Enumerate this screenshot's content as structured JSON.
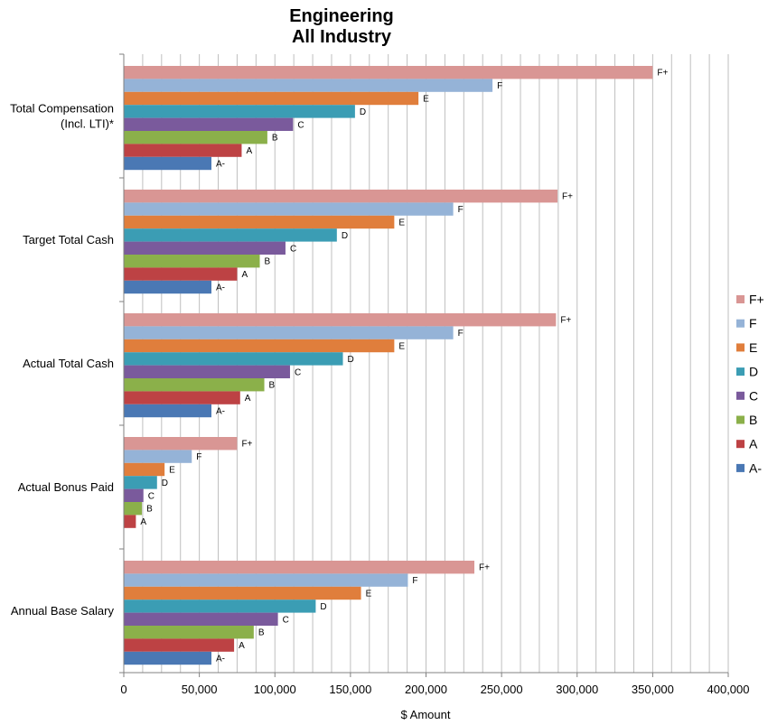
{
  "chart_data": {
    "type": "bar",
    "orientation": "horizontal",
    "title": [
      "Engineering",
      "All Industry"
    ],
    "xlabel": "$ Amount",
    "ylabel": "",
    "xlim": [
      0,
      400000
    ],
    "x_ticks": [
      0,
      50000,
      100000,
      150000,
      200000,
      250000,
      300000,
      350000,
      400000
    ],
    "x_tick_labels": [
      "0",
      "50,000",
      "100,000",
      "150,000",
      "200,000",
      "250,000",
      "300,000",
      "350,000",
      "400,000"
    ],
    "grid": true,
    "legend_position": "right",
    "categories": [
      {
        "lines": [
          "Total Compensation",
          "(Incl. LTI)*"
        ]
      },
      {
        "lines": [
          "Target Total Cash"
        ]
      },
      {
        "lines": [
          "Actual Total Cash"
        ]
      },
      {
        "lines": [
          "Actual Bonus Paid"
        ]
      },
      {
        "lines": [
          "Annual Base Salary"
        ]
      }
    ],
    "series": [
      {
        "name": "F+",
        "color": "#d99694",
        "values": [
          350000,
          287000,
          286000,
          75000,
          232000
        ]
      },
      {
        "name": "F",
        "color": "#95b3d7",
        "values": [
          244000,
          218000,
          218000,
          45000,
          188000
        ]
      },
      {
        "name": "E",
        "color": "#e07e3c",
        "values": [
          195000,
          179000,
          179000,
          27000,
          157000
        ]
      },
      {
        "name": "D",
        "color": "#3b9db4",
        "values": [
          153000,
          141000,
          145000,
          22000,
          127000
        ]
      },
      {
        "name": "C",
        "color": "#7a5a9c",
        "values": [
          112000,
          107000,
          110000,
          13000,
          102000
        ]
      },
      {
        "name": "B",
        "color": "#8bb04a",
        "values": [
          95000,
          90000,
          93000,
          12000,
          86000
        ]
      },
      {
        "name": "A",
        "color": "#bd4244",
        "values": [
          78000,
          75000,
          77000,
          8000,
          73000
        ]
      },
      {
        "name": "A-",
        "color": "#4a78b4",
        "values": [
          58000,
          58000,
          58000,
          null,
          58000
        ]
      }
    ]
  }
}
